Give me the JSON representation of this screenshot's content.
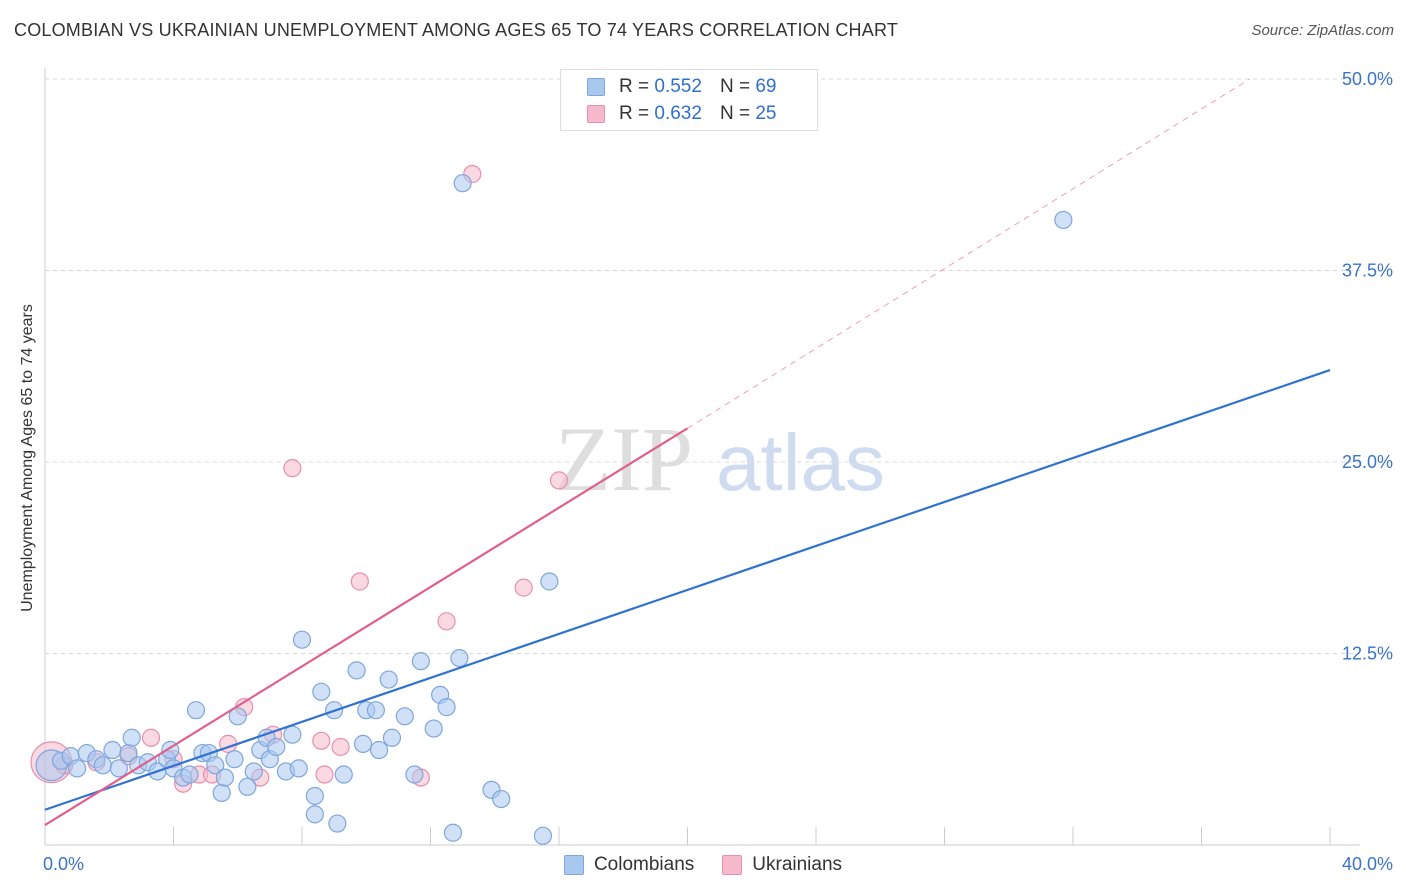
{
  "chart_data": {
    "type": "scatter",
    "title": "COLOMBIAN VS UKRAINIAN UNEMPLOYMENT AMONG AGES 65 TO 74 YEARS CORRELATION CHART",
    "source": "Source: ZipAtlas.com",
    "watermark": {
      "bold": "ZIP",
      "light": "atlas"
    },
    "xlabel": "",
    "ylabel": "Unemployment Among Ages 65 to 74 years",
    "xlim": [
      0,
      40
    ],
    "ylim": [
      0,
      50
    ],
    "x_tick_labels": {
      "min": "0.0%",
      "max": "40.0%"
    },
    "y_ticks": [
      12.5,
      25.0,
      37.5,
      50.0
    ],
    "y_tick_labels": [
      "12.5%",
      "25.0%",
      "37.5%",
      "50.0%"
    ],
    "grid": true,
    "colors": {
      "colombians_fill": "#a9c8f0",
      "colombians_stroke": "#7fa6dc",
      "colombians_line": "#2f72d0",
      "ukrainians_fill": "#f6b9cc",
      "ukrainians_stroke": "#e98fab",
      "ukrainians_line": "#e0608a",
      "tick_label": "#3a73c8"
    },
    "legend": {
      "rows": [
        {
          "r_label": "R =",
          "r_value": "0.552",
          "n_label": "N =",
          "n_value": "69"
        },
        {
          "r_label": "R =",
          "r_value": "0.632",
          "n_label": "N =",
          "n_value": "25"
        }
      ]
    },
    "series": [
      {
        "name": "Colombians",
        "trend": {
          "x": [
            0,
            40
          ],
          "y": [
            2.3,
            31.0
          ],
          "dashed_to": null
        },
        "points": [
          [
            0.2,
            5.2,
            1.8
          ],
          [
            0.5,
            5.5,
            1
          ],
          [
            0.8,
            5.8,
            1
          ],
          [
            1.0,
            5.0,
            1
          ],
          [
            1.3,
            6.0,
            1
          ],
          [
            1.6,
            5.6,
            1
          ],
          [
            1.8,
            5.2,
            1
          ],
          [
            2.1,
            6.2,
            1
          ],
          [
            2.3,
            5.0,
            1
          ],
          [
            2.6,
            6.0,
            1
          ],
          [
            2.7,
            7.0,
            1
          ],
          [
            2.9,
            5.2,
            1
          ],
          [
            3.2,
            5.4,
            1
          ],
          [
            3.5,
            4.8,
            1
          ],
          [
            3.8,
            5.6,
            1
          ],
          [
            3.9,
            6.2,
            1
          ],
          [
            4.0,
            5.0,
            1
          ],
          [
            4.3,
            4.4,
            1
          ],
          [
            4.5,
            4.6,
            1
          ],
          [
            4.7,
            8.8,
            1
          ],
          [
            4.9,
            6.0,
            1
          ],
          [
            5.1,
            6.0,
            1
          ],
          [
            5.3,
            5.2,
            1
          ],
          [
            5.5,
            3.4,
            1
          ],
          [
            5.6,
            4.4,
            1
          ],
          [
            5.9,
            5.6,
            1
          ],
          [
            6.0,
            8.4,
            1
          ],
          [
            6.3,
            3.8,
            1
          ],
          [
            6.5,
            4.8,
            1
          ],
          [
            6.7,
            6.2,
            1
          ],
          [
            6.9,
            7.0,
            1
          ],
          [
            7.0,
            5.6,
            1
          ],
          [
            7.2,
            6.4,
            1
          ],
          [
            7.5,
            4.8,
            1
          ],
          [
            7.7,
            7.2,
            1
          ],
          [
            7.9,
            5.0,
            1
          ],
          [
            8.0,
            13.4,
            1
          ],
          [
            8.4,
            2.0,
            1
          ],
          [
            8.4,
            3.2,
            1
          ],
          [
            8.6,
            10.0,
            1
          ],
          [
            9.0,
            8.8,
            1
          ],
          [
            9.1,
            1.4,
            1
          ],
          [
            9.3,
            4.6,
            1
          ],
          [
            9.7,
            11.4,
            1
          ],
          [
            9.9,
            6.6,
            1
          ],
          [
            10.0,
            8.8,
            1
          ],
          [
            10.3,
            8.8,
            1
          ],
          [
            10.4,
            6.2,
            1
          ],
          [
            10.7,
            10.8,
            1
          ],
          [
            10.8,
            7.0,
            1
          ],
          [
            11.2,
            8.4,
            1
          ],
          [
            11.5,
            4.6,
            1
          ],
          [
            11.7,
            12.0,
            1
          ],
          [
            12.1,
            7.6,
            1
          ],
          [
            12.3,
            9.8,
            1
          ],
          [
            12.5,
            9.0,
            1
          ],
          [
            12.7,
            0.8,
            1
          ],
          [
            12.9,
            12.2,
            1
          ],
          [
            13.0,
            43.2,
            1
          ],
          [
            13.9,
            3.6,
            1
          ],
          [
            14.2,
            3.0,
            1
          ],
          [
            15.5,
            0.6,
            1
          ],
          [
            15.7,
            17.2,
            1
          ],
          [
            31.7,
            40.8,
            1
          ]
        ]
      },
      {
        "name": "Ukrainians",
        "trend": {
          "x": [
            0,
            20
          ],
          "y": [
            1.3,
            27.2
          ],
          "dashed_to": [
            37.5,
            50.0
          ]
        },
        "points": [
          [
            0.2,
            5.4,
            2.4
          ],
          [
            0.6,
            5.2,
            1
          ],
          [
            1.6,
            5.4,
            1
          ],
          [
            2.6,
            5.8,
            1
          ],
          [
            3.3,
            7.0,
            1
          ],
          [
            4.0,
            5.6,
            1
          ],
          [
            4.3,
            4.0,
            1
          ],
          [
            4.8,
            4.6,
            1
          ],
          [
            5.2,
            4.6,
            1
          ],
          [
            5.7,
            6.6,
            1
          ],
          [
            6.2,
            9.0,
            1
          ],
          [
            6.7,
            4.4,
            1
          ],
          [
            7.1,
            7.2,
            1
          ],
          [
            7.7,
            24.6,
            1
          ],
          [
            8.6,
            6.8,
            1
          ],
          [
            8.7,
            4.6,
            1
          ],
          [
            9.2,
            6.4,
            1
          ],
          [
            9.8,
            17.2,
            1
          ],
          [
            11.7,
            4.4,
            1
          ],
          [
            12.5,
            14.6,
            1
          ],
          [
            13.3,
            43.8,
            1
          ],
          [
            14.9,
            16.8,
            1
          ],
          [
            16.0,
            23.8,
            1
          ]
        ]
      }
    ]
  }
}
